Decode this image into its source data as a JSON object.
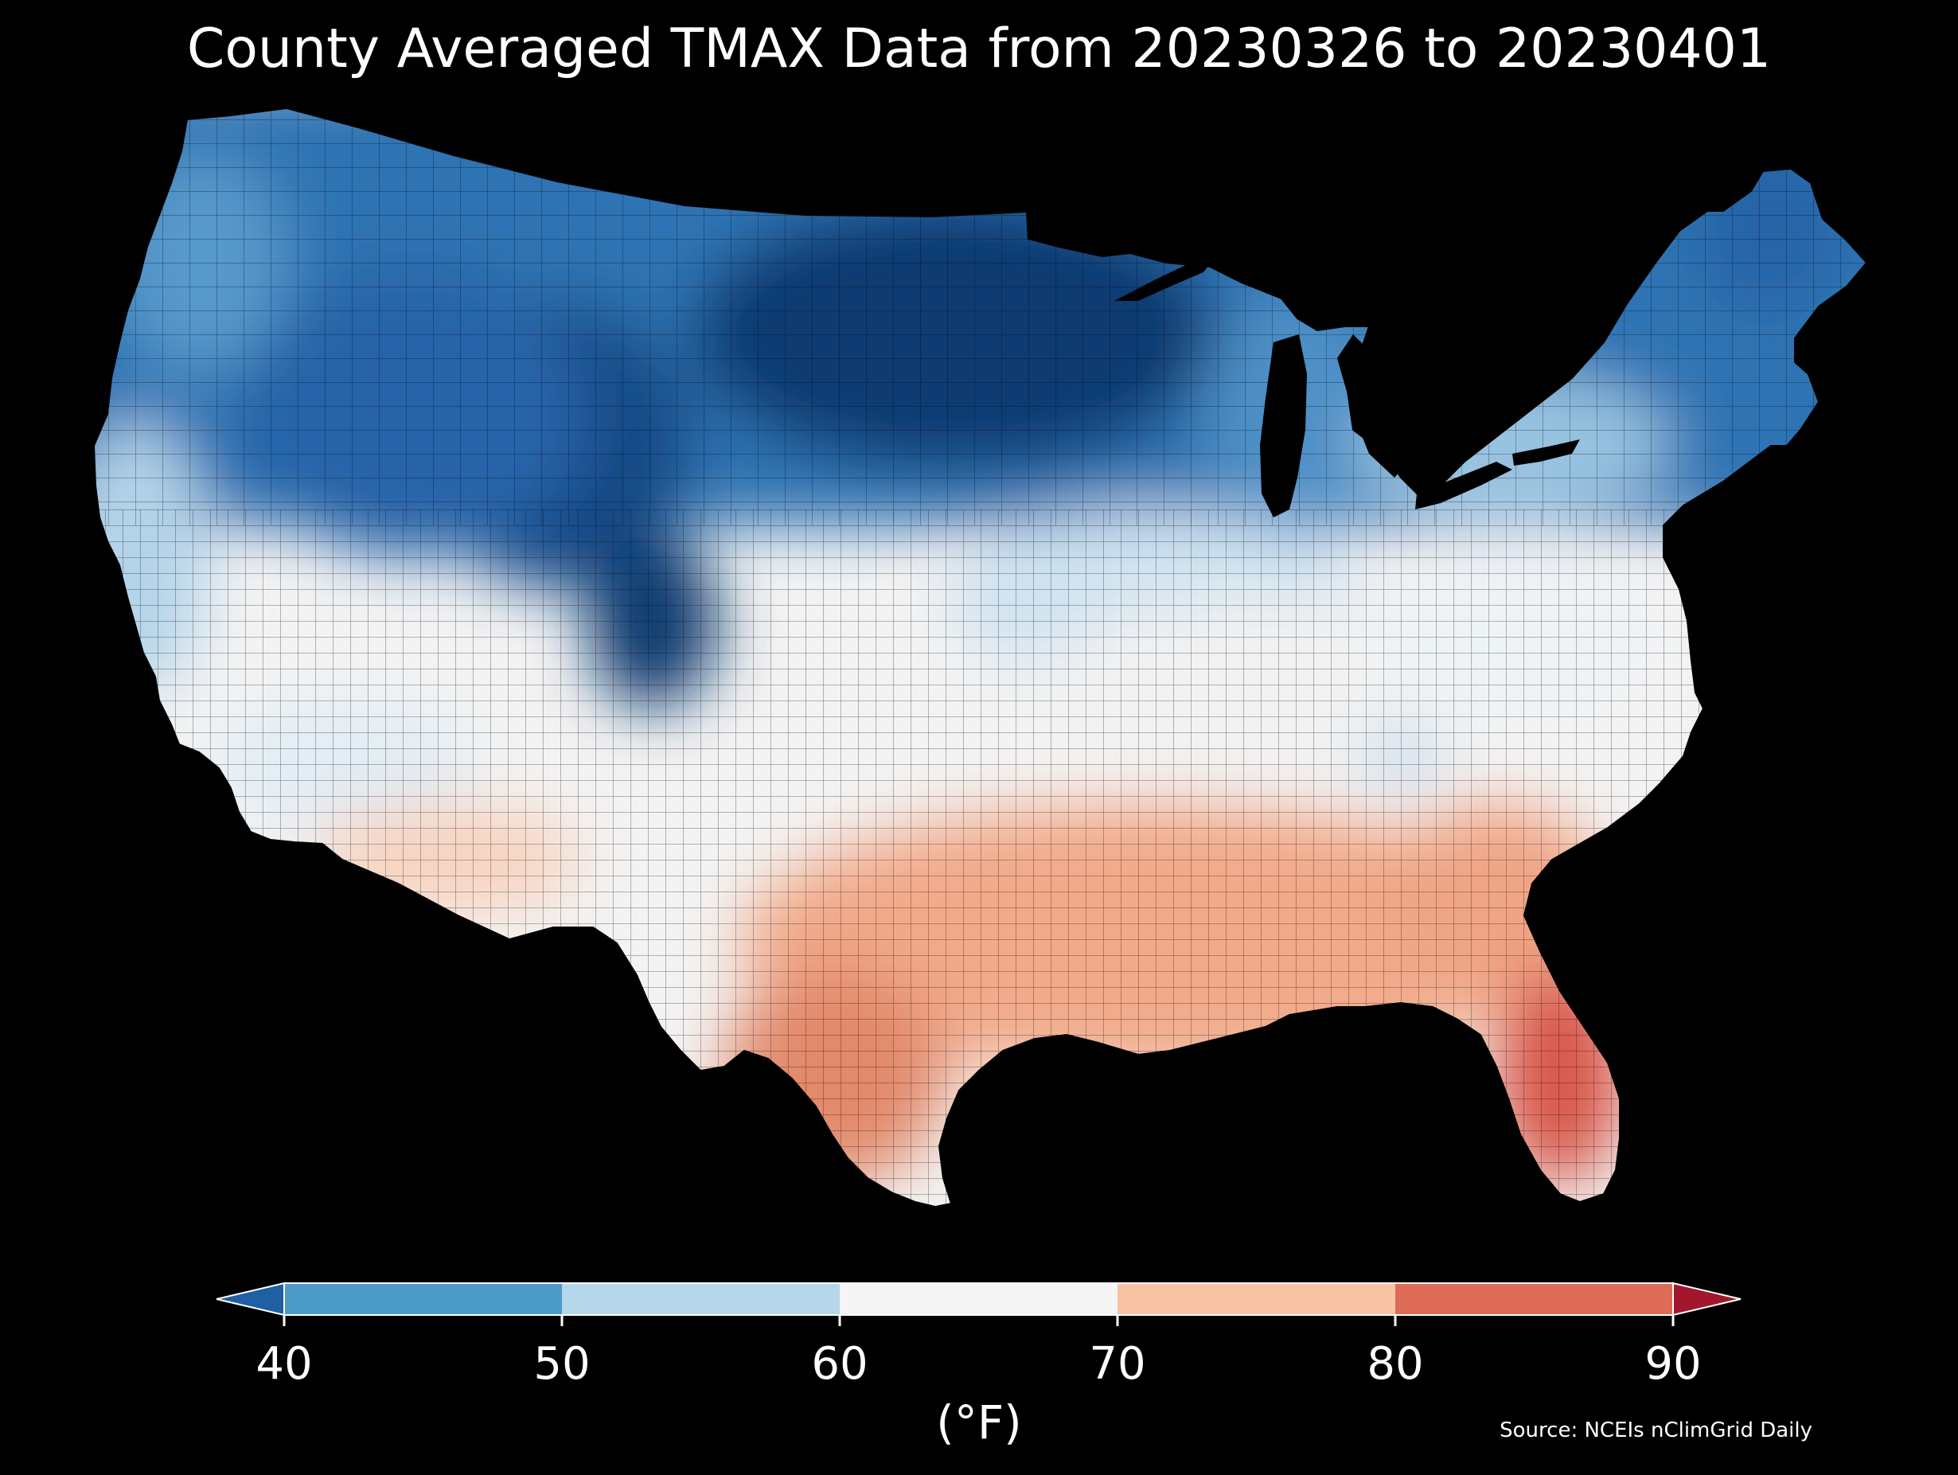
{
  "title": "County Averaged TMAX Data from 20230326 to 20230401",
  "source": "Source: NCEIs nClimGrid Daily",
  "colorbar": {
    "unit_label": "(°F)",
    "ticks": [
      "40",
      "50",
      "60",
      "70",
      "80",
      "90"
    ],
    "bins": [
      {
        "range": "<40",
        "color": "#1f5fa4"
      },
      {
        "range": "40-50",
        "color": "#4c9ac8"
      },
      {
        "range": "50-60",
        "color": "#b6d6ea"
      },
      {
        "range": "60-70",
        "color": "#f5f5f5"
      },
      {
        "range": "70-80",
        "color": "#f8c2a4"
      },
      {
        "range": "80-90",
        "color": "#de6b55"
      },
      {
        "range": ">90",
        "color": "#a2172c"
      }
    ],
    "extend": "both"
  },
  "map": {
    "region": "Contiguous United States",
    "variable": "TMAX",
    "units": "°F",
    "background": "#000000",
    "regional_pattern": [
      {
        "region": "Northern Plains / Upper Midwest",
        "level": "<40"
      },
      {
        "region": "Northern Rockies / Great Basin",
        "level": "40-50"
      },
      {
        "region": "Pacific Northwest",
        "level": "40-50"
      },
      {
        "region": "Northeast / New England",
        "level": "40-50"
      },
      {
        "region": "Great Lakes",
        "level": "50-60"
      },
      {
        "region": "Central Plains / Ohio Valley",
        "level": "60-70"
      },
      {
        "region": "Mid-Atlantic",
        "level": "60-70"
      },
      {
        "region": "California",
        "level": "50-60"
      },
      {
        "region": "Desert Southwest",
        "level": "70-80"
      },
      {
        "region": "Southeast",
        "level": "70-80"
      },
      {
        "region": "South Texas",
        "level": "80-90"
      },
      {
        "region": "Florida",
        "level": "80-90"
      }
    ]
  }
}
